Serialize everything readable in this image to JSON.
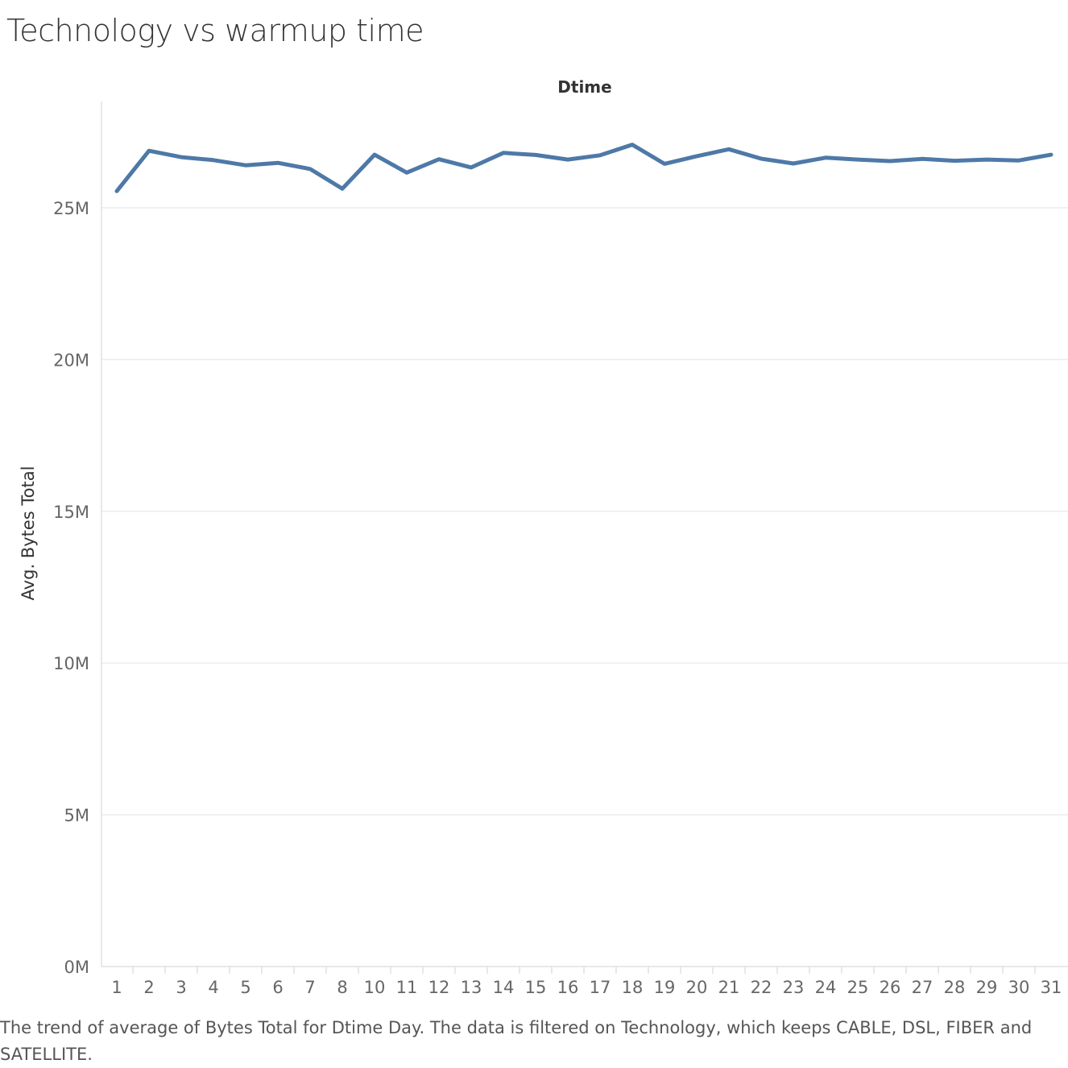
{
  "title": "Technology vs warmup time",
  "caption": "The trend of average of Bytes Total for Dtime Day.  The data is filtered on Technology, which keeps CABLE, DSL, FIBER and SATELLITE.",
  "colors": {
    "line": "#4e79a7",
    "grid": "#ececec",
    "axis": "#e0e0e0"
  },
  "chart_data": {
    "type": "line",
    "xlabel": "Dtime",
    "ylabel": "Avg. Bytes Total",
    "ylim": [
      0,
      28500000
    ],
    "yticks": [
      0,
      5000000,
      10000000,
      15000000,
      20000000,
      25000000
    ],
    "ytick_labels": [
      "0M",
      "5M",
      "10M",
      "15M",
      "20M",
      "25M"
    ],
    "categories": [
      "1",
      "2",
      "3",
      "4",
      "5",
      "6",
      "7",
      "8",
      "10",
      "11",
      "12",
      "13",
      "14",
      "15",
      "16",
      "17",
      "18",
      "19",
      "20",
      "21",
      "22",
      "23",
      "24",
      "25",
      "26",
      "27",
      "28",
      "29",
      "30",
      "31"
    ],
    "series": [
      {
        "values": [
          25550000,
          26880000,
          26670000,
          26570000,
          26400000,
          26480000,
          26280000,
          25630000,
          26750000,
          26160000,
          26600000,
          26330000,
          26810000,
          26740000,
          26590000,
          26730000,
          27080000,
          26450000,
          26700000,
          26930000,
          26620000,
          26460000,
          26650000,
          26590000,
          26540000,
          26610000,
          26550000,
          26590000,
          26560000,
          26750000
        ]
      }
    ],
    "grid": true
  }
}
